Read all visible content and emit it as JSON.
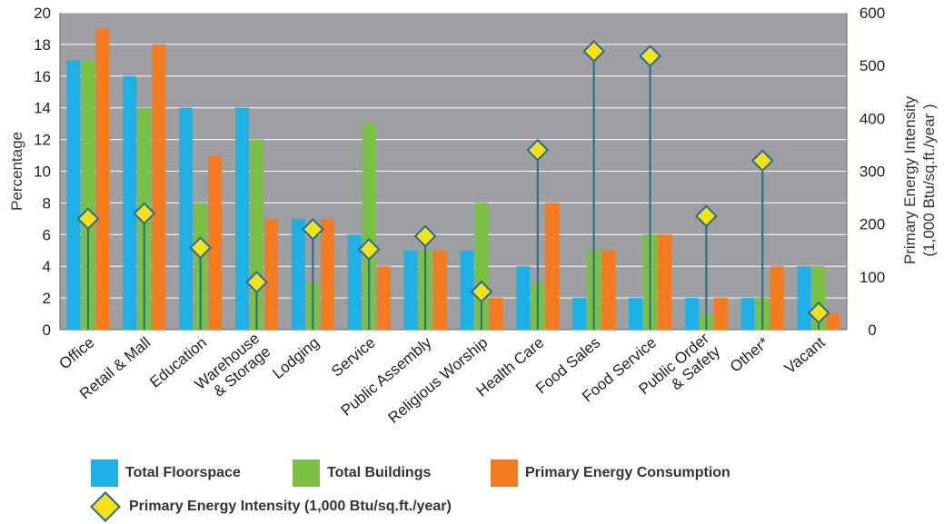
{
  "chart_data": {
    "type": "bar",
    "categories": [
      "Office",
      "Retail & Mall",
      "Education",
      "Warehouse\n& Storage",
      "Lodging",
      "Service",
      "Public Assembly",
      "Religious Worship",
      "Health Care",
      "Food Sales",
      "Food Service",
      "Public Order\n& Safety",
      "Other*",
      "Vacant"
    ],
    "series": [
      {
        "name": "Total Floorspace",
        "color": "#1fb1e6",
        "values": [
          17,
          16,
          14,
          14,
          7,
          6,
          5,
          5,
          4,
          2,
          2,
          2,
          2,
          4
        ]
      },
      {
        "name": "Total Buildings",
        "color": "#7ac143",
        "values": [
          17,
          14,
          8,
          12,
          3,
          13,
          5,
          8,
          3,
          5,
          6,
          1,
          2,
          4
        ]
      },
      {
        "name": "Primary Energy Consumption",
        "color": "#f47b20",
        "values": [
          19,
          18,
          11,
          7,
          7,
          4,
          5,
          2,
          8,
          5,
          6,
          2,
          4,
          1
        ]
      }
    ],
    "intensity_series": {
      "name": "Primary Energy Intensity (1,000 Btu/sq.ft./year)",
      "color": "#f5e11a",
      "values": [
        210,
        220,
        155,
        90,
        190,
        152,
        177,
        72,
        340,
        527,
        518,
        215,
        320,
        32
      ]
    },
    "ylabel": "Percentage",
    "y2label": "Primary Energy Intensity\n(1,000 Btu/sq.ft./year )",
    "ylim": [
      0,
      20
    ],
    "y2lim": [
      0,
      600
    ],
    "yticks": [
      "0",
      "2",
      "4",
      "6",
      "8",
      "10",
      "12",
      "14",
      "16",
      "18",
      "20"
    ],
    "y2ticks": [
      "0",
      "100",
      "200",
      "300",
      "400",
      "500",
      "600"
    ],
    "grid": true,
    "background": "#9d9fa2"
  },
  "legend": {
    "floorspace": "Total Floorspace",
    "buildings": "Total Buildings",
    "consumption": "Primary Energy Consumption",
    "intensity": "Primary Energy Intensity (1,000 Btu/sq.ft./year)"
  }
}
